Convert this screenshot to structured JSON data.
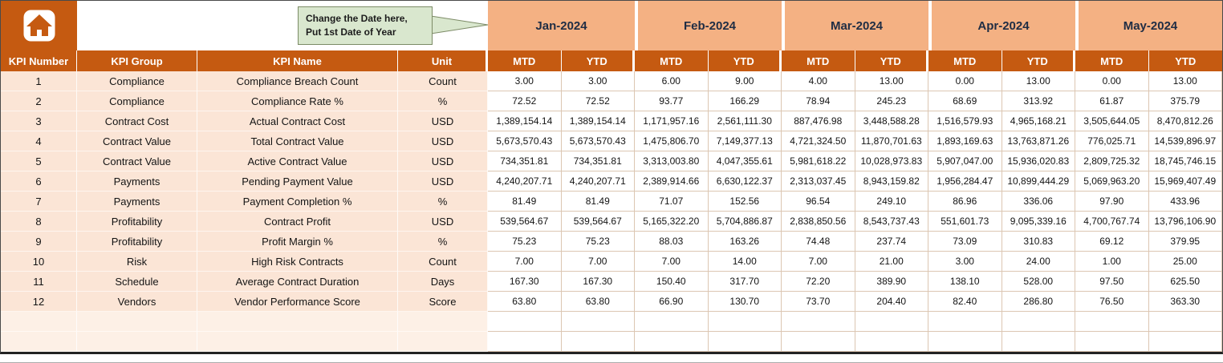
{
  "callout": {
    "line1": "Change the Date here,",
    "line2": "Put 1st Date of Year"
  },
  "months": [
    "Jan-2024",
    "Feb-2024",
    "Mar-2024",
    "Apr-2024",
    "May-2024"
  ],
  "header": {
    "kpi_number": "KPI Number",
    "kpi_group": "KPI Group",
    "kpi_name": "KPI Name",
    "unit": "Unit",
    "mtd": "MTD",
    "ytd": "YTD"
  },
  "rows": [
    {
      "num": "1",
      "group": "Compliance",
      "name": "Compliance Breach Count",
      "unit": "Count",
      "values": [
        "3.00",
        "3.00",
        "6.00",
        "9.00",
        "4.00",
        "13.00",
        "0.00",
        "13.00",
        "0.00",
        "13.00"
      ]
    },
    {
      "num": "2",
      "group": "Compliance",
      "name": "Compliance Rate %",
      "unit": "%",
      "values": [
        "72.52",
        "72.52",
        "93.77",
        "166.29",
        "78.94",
        "245.23",
        "68.69",
        "313.92",
        "61.87",
        "375.79"
      ]
    },
    {
      "num": "3",
      "group": "Contract Cost",
      "name": "Actual Contract Cost",
      "unit": "USD",
      "values": [
        "1,389,154.14",
        "1,389,154.14",
        "1,171,957.16",
        "2,561,111.30",
        "887,476.98",
        "3,448,588.28",
        "1,516,579.93",
        "4,965,168.21",
        "3,505,644.05",
        "8,470,812.26"
      ]
    },
    {
      "num": "4",
      "group": "Contract Value",
      "name": "Total Contract Value",
      "unit": "USD",
      "values": [
        "5,673,570.43",
        "5,673,570.43",
        "1,475,806.70",
        "7,149,377.13",
        "4,721,324.50",
        "11,870,701.63",
        "1,893,169.63",
        "13,763,871.26",
        "776,025.71",
        "14,539,896.97"
      ]
    },
    {
      "num": "5",
      "group": "Contract Value",
      "name": "Active Contract Value",
      "unit": "USD",
      "values": [
        "734,351.81",
        "734,351.81",
        "3,313,003.80",
        "4,047,355.61",
        "5,981,618.22",
        "10,028,973.83",
        "5,907,047.00",
        "15,936,020.83",
        "2,809,725.32",
        "18,745,746.15"
      ]
    },
    {
      "num": "6",
      "group": "Payments",
      "name": "Pending Payment Value",
      "unit": "USD",
      "values": [
        "4,240,207.71",
        "4,240,207.71",
        "2,389,914.66",
        "6,630,122.37",
        "2,313,037.45",
        "8,943,159.82",
        "1,956,284.47",
        "10,899,444.29",
        "5,069,963.20",
        "15,969,407.49"
      ]
    },
    {
      "num": "7",
      "group": "Payments",
      "name": "Payment Completion %",
      "unit": "%",
      "values": [
        "81.49",
        "81.49",
        "71.07",
        "152.56",
        "96.54",
        "249.10",
        "86.96",
        "336.06",
        "97.90",
        "433.96"
      ]
    },
    {
      "num": "8",
      "group": "Profitability",
      "name": "Contract Profit",
      "unit": "USD",
      "values": [
        "539,564.67",
        "539,564.67",
        "5,165,322.20",
        "5,704,886.87",
        "2,838,850.56",
        "8,543,737.43",
        "551,601.73",
        "9,095,339.16",
        "4,700,767.74",
        "13,796,106.90"
      ]
    },
    {
      "num": "9",
      "group": "Profitability",
      "name": "Profit Margin %",
      "unit": "%",
      "values": [
        "75.23",
        "75.23",
        "88.03",
        "163.26",
        "74.48",
        "237.74",
        "73.09",
        "310.83",
        "69.12",
        "379.95"
      ]
    },
    {
      "num": "10",
      "group": "Risk",
      "name": "High Risk Contracts",
      "unit": "Count",
      "values": [
        "7.00",
        "7.00",
        "7.00",
        "14.00",
        "7.00",
        "21.00",
        "3.00",
        "24.00",
        "1.00",
        "25.00"
      ]
    },
    {
      "num": "11",
      "group": "Schedule",
      "name": "Average Contract Duration",
      "unit": "Days",
      "values": [
        "167.30",
        "167.30",
        "150.40",
        "317.70",
        "72.20",
        "389.90",
        "138.10",
        "528.00",
        "97.50",
        "625.50"
      ]
    },
    {
      "num": "12",
      "group": "Vendors",
      "name": "Vendor Performance Score",
      "unit": "Score",
      "values": [
        "63.80",
        "63.80",
        "66.90",
        "130.70",
        "73.70",
        "204.40",
        "82.40",
        "286.80",
        "76.50",
        "363.30"
      ]
    }
  ],
  "empty_row_count": 2,
  "icons": {
    "home": "home-icon",
    "callout_arrow": "callout-arrow-icon"
  },
  "colors": {
    "accent_dark": "#C55A11",
    "accent_light": "#F4B183",
    "row_tint": "#FBE5D6",
    "row_tint_pale": "#FDF0E6",
    "callout_bg": "#D9E7CE",
    "callout_border": "#7C8B66",
    "month_text": "#1F2D44",
    "grid_line": "#DCC6B2"
  }
}
